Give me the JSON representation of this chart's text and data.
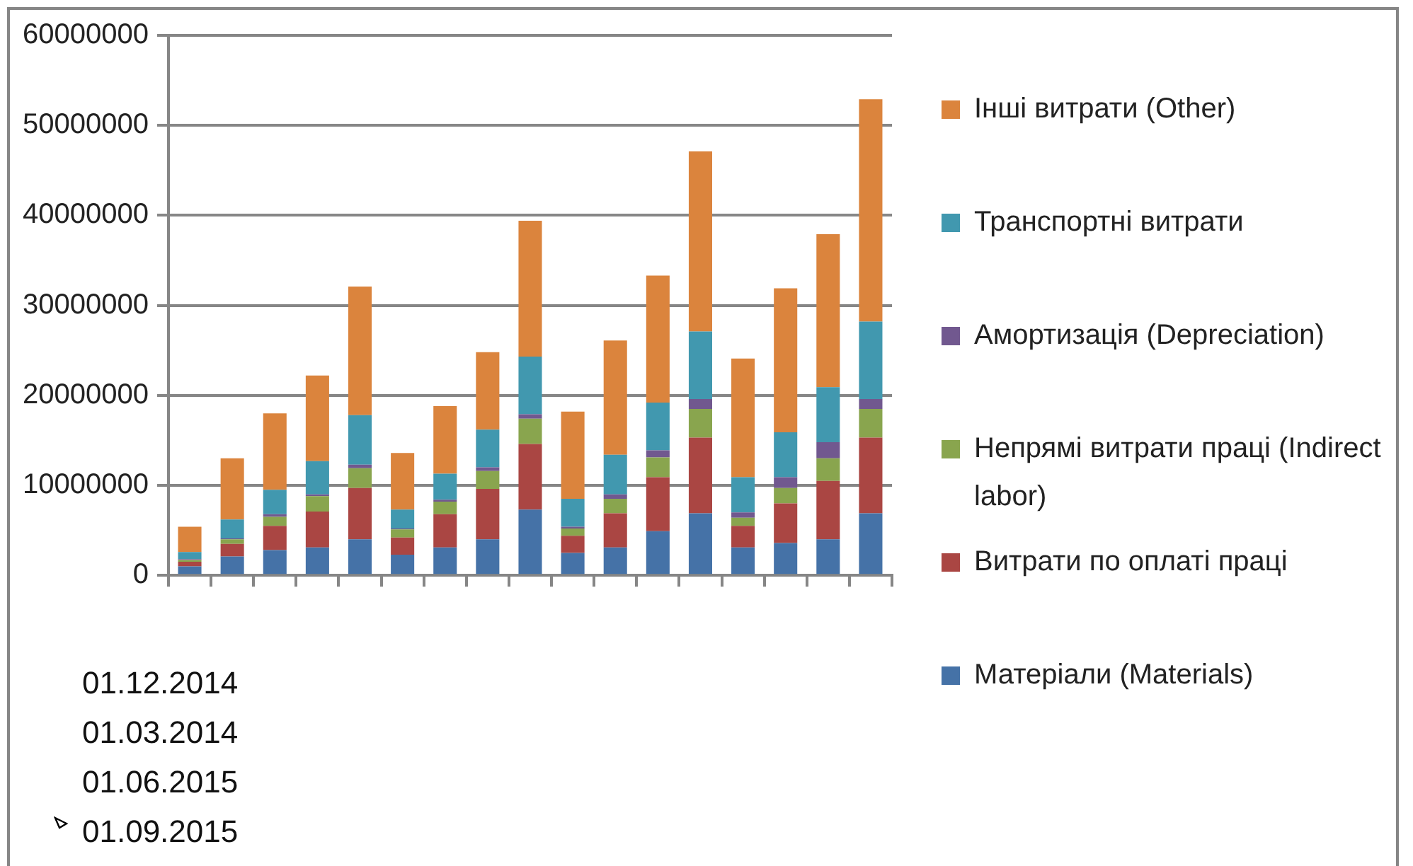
{
  "chart_data": {
    "type": "bar",
    "stacked": true,
    "categories": [
      null,
      null,
      null,
      null,
      null,
      null,
      null,
      null,
      null,
      null,
      null,
      null,
      null,
      null,
      null,
      null,
      null
    ],
    "series": [
      {
        "name": "Матеріали (Materials)",
        "color": "#4572a7",
        "values": [
          1000000,
          2100000,
          2800000,
          3100000,
          4000000,
          2300000,
          3100000,
          4000000,
          7300000,
          2500000,
          3100000,
          4900000,
          6900000,
          3100000,
          3600000,
          4000000,
          6900000
        ]
      },
      {
        "name": "Витрати по оплаті праці",
        "color": "#aa4643",
        "values": [
          500000,
          1400000,
          2700000,
          4000000,
          5700000,
          1900000,
          3700000,
          5600000,
          7300000,
          1900000,
          3800000,
          6000000,
          8400000,
          2400000,
          4400000,
          6500000,
          8400000
        ]
      },
      {
        "name": "Непрямі витрати праці (Indirect labor)",
        "color": "#89a54e",
        "values": [
          200000,
          500000,
          1000000,
          1700000,
          2200000,
          900000,
          1400000,
          2000000,
          2800000,
          800000,
          1600000,
          2200000,
          3200000,
          900000,
          1700000,
          2500000,
          3200000
        ]
      },
      {
        "name": "Амортизація (Depreciation)",
        "color": "#71588f",
        "values": [
          100000,
          100000,
          300000,
          200000,
          400000,
          100000,
          200000,
          400000,
          500000,
          200000,
          500000,
          800000,
          1100000,
          600000,
          1200000,
          1800000,
          1100000
        ]
      },
      {
        "name": "Транспортні витрати",
        "color": "#4198af",
        "values": [
          800000,
          2100000,
          2700000,
          3700000,
          5500000,
          2100000,
          2900000,
          4200000,
          6400000,
          3100000,
          4400000,
          5300000,
          7500000,
          3900000,
          5000000,
          6100000,
          8600000
        ]
      },
      {
        "name": "Інші витрати (Other)",
        "color": "#db843d",
        "values": [
          2800000,
          6800000,
          8500000,
          9500000,
          14300000,
          6300000,
          7500000,
          8600000,
          15100000,
          9700000,
          12700000,
          14100000,
          20000000,
          13200000,
          16000000,
          17000000,
          24700000
        ]
      }
    ],
    "ylim": [
      0,
      60000000
    ],
    "yticks": [
      0,
      10000000,
      20000000,
      30000000,
      40000000,
      50000000,
      60000000
    ],
    "grid": "y",
    "legend": "right",
    "annotations": [
      "01.12.2014",
      "01.03.2014",
      "01.06.2015",
      "01.09.2015"
    ]
  }
}
